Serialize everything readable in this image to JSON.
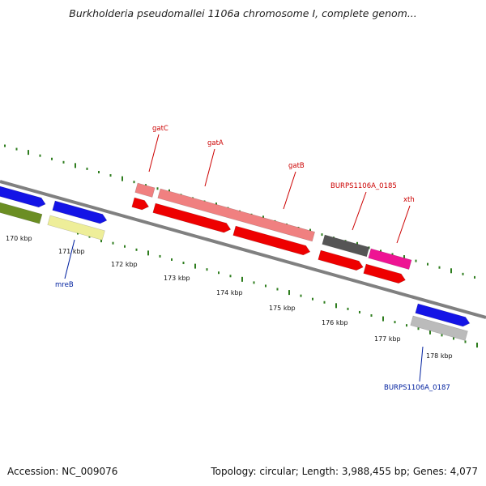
{
  "title": "Burkholderia pseudomallei 1106a chromosome I, complete genom...",
  "footer": {
    "accession": "Accession: NC_009076",
    "summary": "Topology: circular; Length: 3,988,455 bp; Genes: 4,077"
  },
  "colors": {
    "backbone": "#808080",
    "tick": "#2e7d1e",
    "label_red": "#cc0000",
    "label_blue": "#00209f",
    "cds_blue": "#1414e6",
    "cds_olive": "#6b8e23",
    "cds_yellow": "#eeee99",
    "cds_pink": "#f08080",
    "cds_red": "#ee0000",
    "cds_gray": "#555555",
    "cds_magenta": "#ee1493",
    "cds_lightgray": "#bbbbbb"
  },
  "axis": {
    "unit": "kbp",
    "ticks": [
      {
        "label": "170 kbp"
      },
      {
        "label": "171 kbp"
      },
      {
        "label": "172 kbp"
      },
      {
        "label": "173 kbp"
      },
      {
        "label": "174 kbp"
      },
      {
        "label": "175 kbp"
      },
      {
        "label": "176 kbp"
      },
      {
        "label": "177 kbp"
      },
      {
        "label": "178 kbp"
      }
    ]
  },
  "gene_labels": [
    {
      "name": "gatC",
      "color_key": "label_red"
    },
    {
      "name": "gatA",
      "color_key": "label_red"
    },
    {
      "name": "gatB",
      "color_key": "label_red"
    },
    {
      "name": "BURPS1106A_0185",
      "color_key": "label_red"
    },
    {
      "name": "xth",
      "color_key": "label_red"
    },
    {
      "name": "mreB",
      "color_key": "label_blue"
    },
    {
      "name": "BURPS1106A_0187",
      "color_key": "label_blue"
    }
  ]
}
